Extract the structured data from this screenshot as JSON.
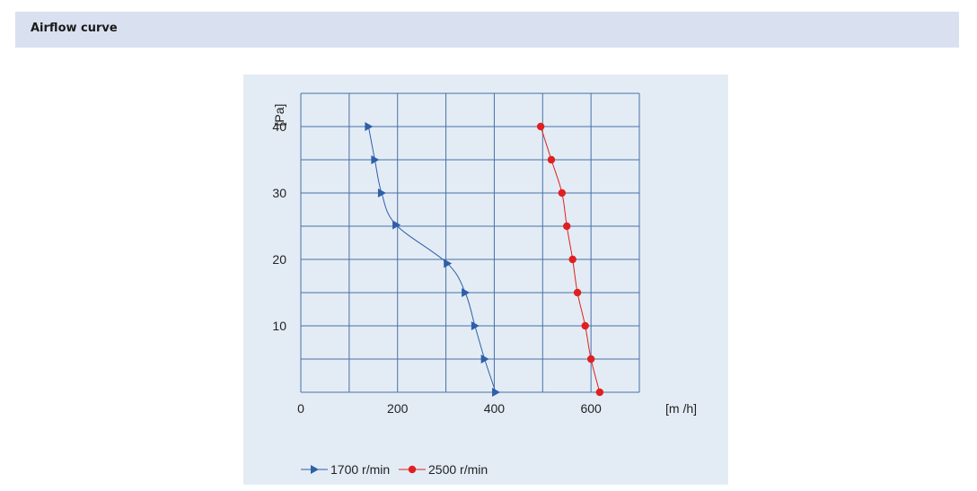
{
  "header": {
    "title": "Airflow curve"
  },
  "chart_data": {
    "type": "line",
    "title": "",
    "xlabel": "[m /h]",
    "ylabel": "[Pa]",
    "xlim": [
      0,
      700
    ],
    "ylim": [
      0,
      45
    ],
    "x_ticks": [
      0,
      200,
      400,
      600
    ],
    "y_ticks": [
      10,
      20,
      30,
      40
    ],
    "grid": true,
    "legend_position": "bottom",
    "series": [
      {
        "name": "1700 r/min",
        "color": "#2e5fa8",
        "marker": "triangle-right",
        "points": [
          [
            140,
            40
          ],
          [
            153,
            35
          ],
          [
            167,
            30
          ],
          [
            197,
            25.2
          ],
          [
            303,
            19.4
          ],
          [
            340,
            15
          ],
          [
            360,
            10
          ],
          [
            380,
            5
          ],
          [
            403,
            0
          ]
        ]
      },
      {
        "name": "2500 r/min",
        "color": "#e02020",
        "marker": "circle",
        "points": [
          [
            496,
            40
          ],
          [
            518,
            35
          ],
          [
            540,
            30
          ],
          [
            550,
            25
          ],
          [
            562,
            20
          ],
          [
            572,
            15
          ],
          [
            588,
            10
          ],
          [
            600,
            5
          ],
          [
            618,
            0
          ]
        ]
      }
    ]
  }
}
